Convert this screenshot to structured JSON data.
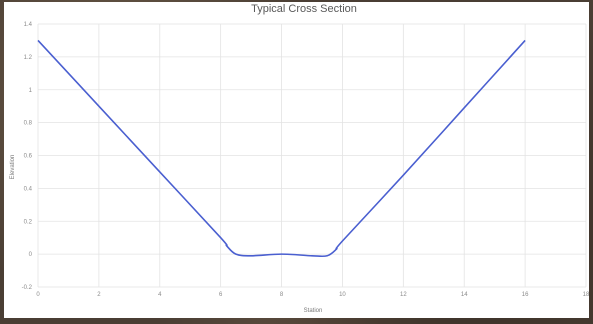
{
  "chart_data": {
    "type": "line",
    "title": "Typical Cross Section",
    "xlabel": "Station",
    "ylabel": "Elevation",
    "xlim": [
      0,
      18
    ],
    "ylim": [
      -0.2,
      1.4
    ],
    "xticks": [
      0,
      2,
      4,
      6,
      8,
      10,
      12,
      14,
      16,
      18
    ],
    "yticks": [
      -0.2,
      0,
      0.2,
      0.4,
      0.6,
      0.8,
      1,
      1.2,
      1.4
    ],
    "grid": true,
    "series": [
      {
        "color": "#4a5fd0",
        "x": [
          0,
          2,
          4,
          6,
          6.2,
          6.5,
          7,
          8,
          9,
          9.5,
          9.8,
          10,
          12,
          14,
          16
        ],
        "y": [
          1.3,
          0.9,
          0.5,
          0.1,
          0.05,
          0.0,
          -0.01,
          0.0,
          -0.01,
          -0.01,
          0.03,
          0.08,
          0.48,
          0.89,
          1.3
        ]
      }
    ]
  }
}
